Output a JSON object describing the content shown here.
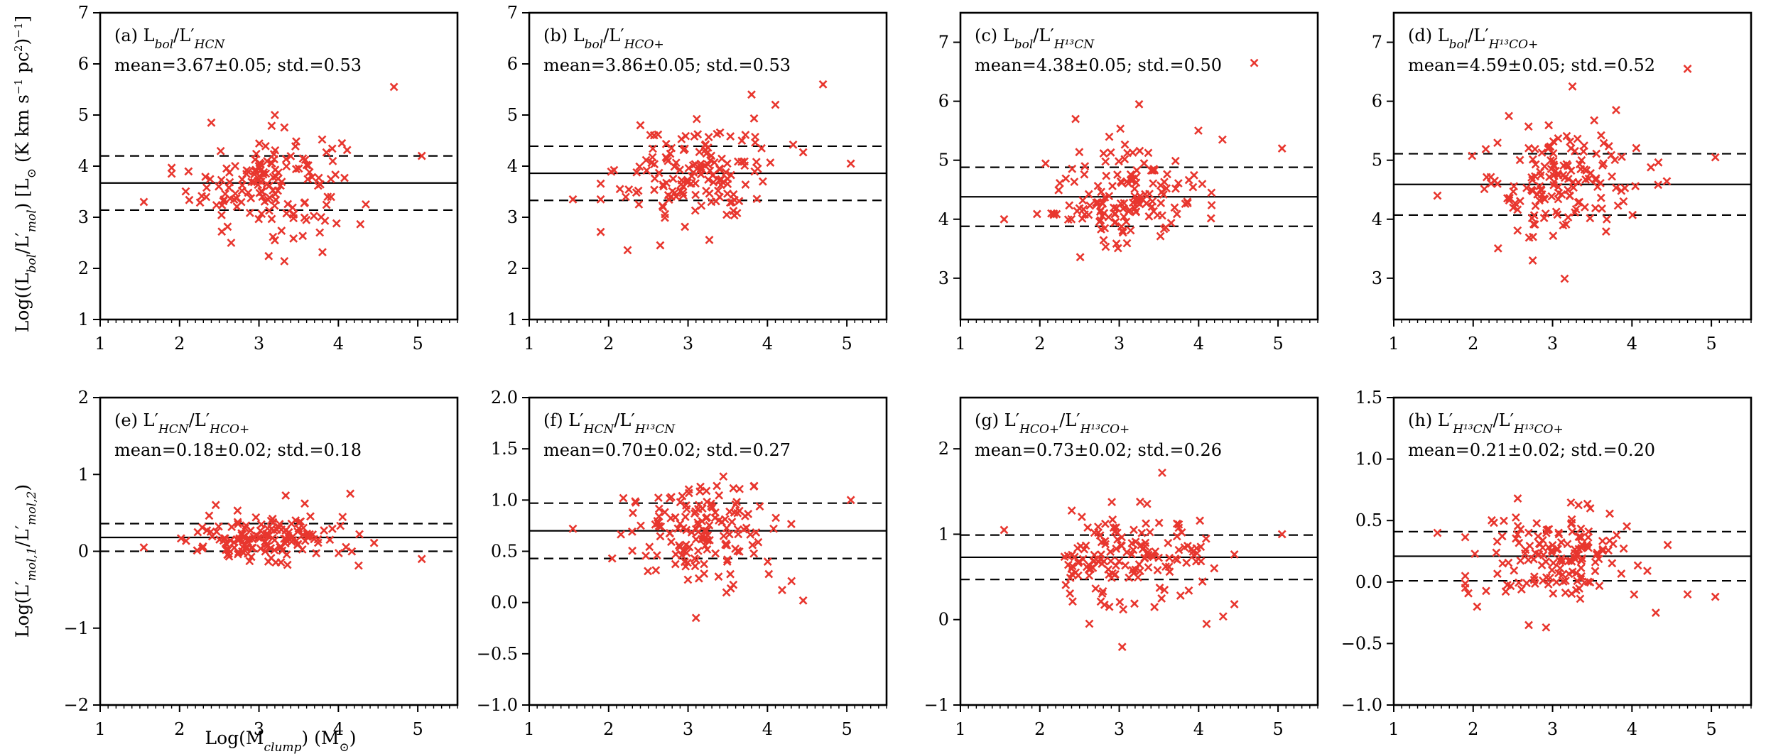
{
  "figure": {
    "xlabel": "Log(M_clump) (M⊙)",
    "ylabel_top": "Log((L_bol/L'_mol) [L⊙ (K km s⁻¹ pc²)⁻¹]",
    "ylabel_bottom": "Log(L'_mol,1/L'_mol,2)",
    "marker_color": "#e8362e"
  },
  "chart_data": [
    {
      "type": "scatter",
      "id": "a",
      "label_parts": [
        "(a) L",
        "bol",
        "/L′",
        "HCN",
        ""
      ],
      "stats_text": "mean=3.67±0.05; std.=0.53",
      "mean": 3.67,
      "std": 0.53,
      "xlim": [
        1,
        5.5
      ],
      "ylim": [
        1,
        7
      ],
      "yticks": [
        "1",
        "2",
        "3",
        "4",
        "5",
        "6",
        "7"
      ],
      "xticks": [
        "1",
        "2",
        "3",
        "4",
        "5"
      ],
      "points_center": [
        3.1,
        3.67
      ],
      "points_spread": [
        0.48,
        0.5
      ],
      "outliers": [
        [
          4.7,
          5.55
        ],
        [
          2.4,
          4.85
        ],
        [
          3.2,
          5.0
        ],
        [
          5.05,
          4.2
        ],
        [
          2.65,
          2.5
        ],
        [
          3.2,
          2.55
        ],
        [
          1.55,
          3.3
        ]
      ],
      "n_points": 150
    },
    {
      "type": "scatter",
      "id": "b",
      "label_parts": [
        "(b) L",
        "bol",
        "/L′",
        "HCO",
        "+"
      ],
      "stats_text": "mean=3.86±0.05; std.=0.53",
      "mean": 3.86,
      "std": 0.53,
      "xlim": [
        1,
        5.5
      ],
      "ylim": [
        1,
        7
      ],
      "yticks": [
        "1",
        "2",
        "3",
        "4",
        "5",
        "6",
        "7"
      ],
      "xticks": [
        "1",
        "2",
        "3",
        "4",
        "5"
      ],
      "points_center": [
        3.1,
        3.86
      ],
      "points_spread": [
        0.48,
        0.5
      ],
      "outliers": [
        [
          4.7,
          5.6
        ],
        [
          3.8,
          5.4
        ],
        [
          4.1,
          5.2
        ],
        [
          2.4,
          4.8
        ],
        [
          2.65,
          2.45
        ],
        [
          1.55,
          3.35
        ],
        [
          5.05,
          4.05
        ]
      ],
      "n_points": 150
    },
    {
      "type": "scatter",
      "id": "c",
      "label_parts": [
        "(c) L",
        "bol",
        "/L′",
        "H¹³CN",
        ""
      ],
      "stats_text": "mean=4.38±0.05; std.=0.50",
      "mean": 4.38,
      "std": 0.5,
      "xlim": [
        1,
        5.5
      ],
      "ylim": [
        2.3,
        7.5
      ],
      "yticks": [
        "3",
        "4",
        "5",
        "6",
        "7"
      ],
      "xticks": [
        "1",
        "2",
        "3",
        "4",
        "5"
      ],
      "points_center": [
        3.1,
        4.35
      ],
      "points_spread": [
        0.48,
        0.45
      ],
      "outliers": [
        [
          4.7,
          6.65
        ],
        [
          3.25,
          5.95
        ],
        [
          2.45,
          5.7
        ],
        [
          4.3,
          5.35
        ],
        [
          5.05,
          5.2
        ],
        [
          1.55,
          4.0
        ]
      ],
      "n_points": 150
    },
    {
      "type": "scatter",
      "id": "d",
      "label_parts": [
        "(d) L",
        "bol",
        "/L′",
        "H¹³CO",
        "+"
      ],
      "stats_text": "mean=4.59±0.05; std.=0.52",
      "mean": 4.59,
      "std": 0.52,
      "xlim": [
        1,
        5.5
      ],
      "ylim": [
        2.3,
        7.5
      ],
      "yticks": [
        "3",
        "4",
        "5",
        "6",
        "7"
      ],
      "xticks": [
        "1",
        "2",
        "3",
        "4",
        "5"
      ],
      "points_center": [
        3.1,
        4.6
      ],
      "points_spread": [
        0.48,
        0.48
      ],
      "outliers": [
        [
          4.7,
          6.55
        ],
        [
          3.25,
          6.25
        ],
        [
          2.45,
          5.75
        ],
        [
          3.8,
          5.85
        ],
        [
          2.75,
          3.3
        ],
        [
          5.05,
          5.05
        ],
        [
          1.55,
          4.4
        ]
      ],
      "n_points": 150
    },
    {
      "type": "scatter",
      "id": "e",
      "label_parts": [
        "(e) L′",
        "HCN",
        "/L′",
        "HCO",
        "+"
      ],
      "stats_text": "mean=0.18±0.02; std.=0.18",
      "mean": 0.18,
      "std": 0.18,
      "xlim": [
        1,
        5.5
      ],
      "ylim": [
        -2,
        2
      ],
      "yticks": [
        "−2",
        "−1",
        "0",
        "1",
        "2"
      ],
      "xticks": [
        "1",
        "2",
        "3",
        "4",
        "5"
      ],
      "points_center": [
        3.1,
        0.18
      ],
      "points_spread": [
        0.48,
        0.17
      ],
      "outliers": [
        [
          4.15,
          0.75
        ],
        [
          5.05,
          -0.1
        ],
        [
          1.55,
          0.05
        ]
      ],
      "n_points": 150
    },
    {
      "type": "scatter",
      "id": "f",
      "label_parts": [
        "(f) L′",
        "HCN",
        "/L′",
        "H¹³CN",
        ""
      ],
      "stats_text": "mean=0.70±0.02; std.=0.27",
      "mean": 0.7,
      "std": 0.27,
      "xlim": [
        1,
        5.5
      ],
      "ylim": [
        -1,
        2
      ],
      "yticks": [
        "−1.0",
        "−0.5",
        "0.0",
        "0.5",
        "1.0",
        "1.5",
        "2.0"
      ],
      "xticks": [
        "1",
        "2",
        "3",
        "4",
        "5"
      ],
      "points_center": [
        3.1,
        0.7
      ],
      "points_spread": [
        0.48,
        0.26
      ],
      "outliers": [
        [
          3.1,
          -0.15
        ],
        [
          4.45,
          0.02
        ],
        [
          5.05,
          1.0
        ],
        [
          1.55,
          0.72
        ]
      ],
      "n_points": 150
    },
    {
      "type": "scatter",
      "id": "g",
      "label_parts": [
        "(g) L′",
        "HCO+",
        "/L′",
        "H¹³CO",
        "+"
      ],
      "stats_text": "mean=0.73±0.02; std.=0.26",
      "mean": 0.73,
      "std": 0.26,
      "xlim": [
        1,
        5.5
      ],
      "ylim": [
        -1,
        2.6
      ],
      "yticks": [
        "−1",
        "0",
        "1",
        "2"
      ],
      "xticks": [
        "1",
        "2",
        "3",
        "4",
        "5"
      ],
      "points_center": [
        3.1,
        0.73
      ],
      "points_spread": [
        0.48,
        0.25
      ],
      "outliers": [
        [
          4.1,
          -0.05
        ],
        [
          3.05,
          0.12
        ],
        [
          5.05,
          1.0
        ],
        [
          1.55,
          1.05
        ],
        [
          4.45,
          0.18
        ]
      ],
      "n_points": 150
    },
    {
      "type": "scatter",
      "id": "h",
      "label_parts": [
        "(h) L′",
        "H¹³CN",
        "/L′",
        "H¹³CO",
        "+"
      ],
      "stats_text": "mean=0.21±0.02; std.=0.20",
      "mean": 0.21,
      "std": 0.2,
      "xlim": [
        1,
        5.5
      ],
      "ylim": [
        -1,
        1.5
      ],
      "yticks": [
        "−1.0",
        "−0.5",
        "0.0",
        "0.5",
        "1.0",
        "1.5"
      ],
      "xticks": [
        "1",
        "2",
        "3",
        "4",
        "5"
      ],
      "points_center": [
        3.1,
        0.21
      ],
      "points_spread": [
        0.48,
        0.19
      ],
      "outliers": [
        [
          2.7,
          -0.35
        ],
        [
          4.3,
          -0.25
        ],
        [
          4.7,
          -0.1
        ],
        [
          5.05,
          -0.12
        ],
        [
          2.05,
          -0.2
        ],
        [
          1.55,
          0.4
        ]
      ],
      "n_points": 150
    }
  ]
}
